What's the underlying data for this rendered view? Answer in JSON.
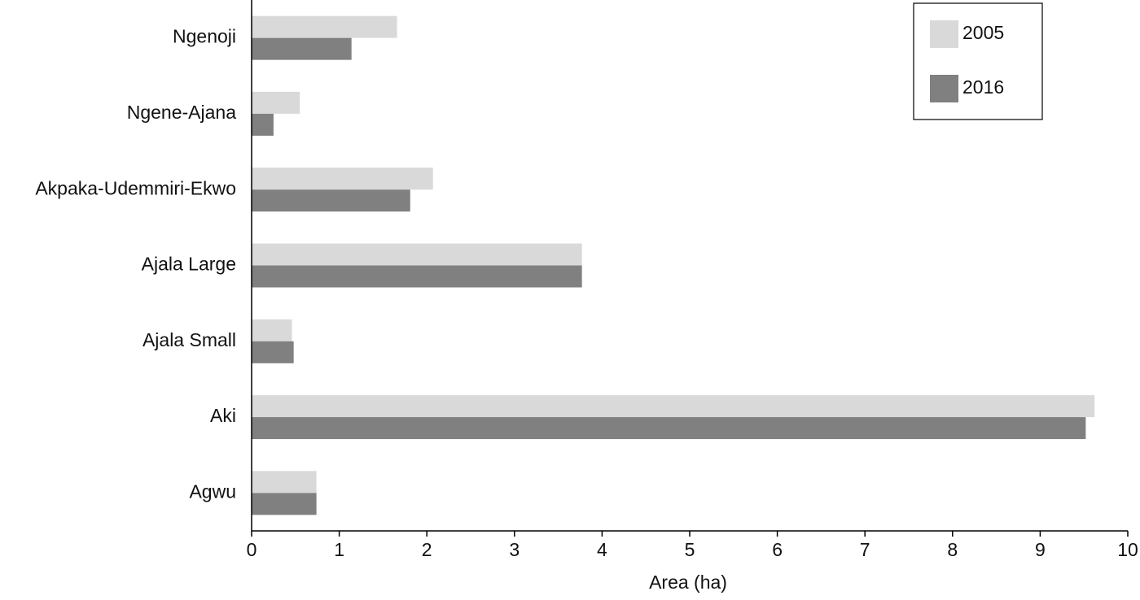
{
  "chart_data": {
    "type": "barh",
    "xlabel": "Area (ha)",
    "categories": [
      "Ngenoji",
      "Ngene-Ajana",
      "Akpaka-Udemmiri-Ekwo",
      "Ajala Large",
      "Ajala Small",
      "Aki",
      "Agwu"
    ],
    "series": [
      {
        "name": "2005",
        "color": "#d9d9d9",
        "values": [
          1.66,
          0.55,
          2.07,
          3.77,
          0.46,
          9.62,
          0.74
        ]
      },
      {
        "name": "2016",
        "color": "#808080",
        "values": [
          1.14,
          0.25,
          1.81,
          3.77,
          0.48,
          9.52,
          0.74
        ]
      }
    ],
    "xlim": [
      0,
      10
    ],
    "xticks": [
      0,
      1,
      2,
      3,
      4,
      5,
      6,
      7,
      8,
      9,
      10
    ],
    "legend": "upper right"
  }
}
